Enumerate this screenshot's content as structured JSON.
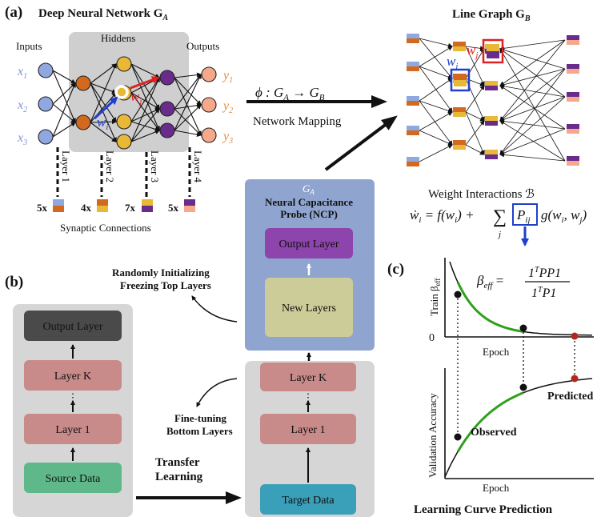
{
  "panel_a": {
    "label": "(a)",
    "title_main": "Deep Neural Network G",
    "title_sub": "A",
    "inputs_title": "Inputs",
    "hiddens_title": "Hiddens",
    "outputs_title": "Outputs",
    "input_labels": [
      "x",
      "x",
      "x"
    ],
    "input_subs": [
      "1",
      "2",
      "3"
    ],
    "output_labels": [
      "y",
      "y",
      "y"
    ],
    "output_subs": [
      "1",
      "2",
      "3"
    ],
    "layer_labels": [
      "Layer 1",
      "Layer 2",
      "Layer 3",
      "Layer 4"
    ],
    "counts": [
      "5x",
      "4x",
      "7x",
      "5x"
    ],
    "synaptic": "Synaptic Connections",
    "wi": "w",
    "wi_sub": "i",
    "wj": "w",
    "wj_sub": "j"
  },
  "mapping": {
    "formula_lead": "ϕ : G",
    "formula_sub1": "A",
    "formula_arrow": " → G",
    "formula_sub2": "B",
    "label": "Network Mapping"
  },
  "line_graph": {
    "title_main": "Line Graph G",
    "title_sub": "B",
    "wi": "w",
    "wi_sub": "i",
    "wj": "w",
    "wj_sub": "j",
    "interactions_title": "Weight Interactions ℬ",
    "eq_lhs": "ẇ",
    "eq_lhs_sub": "i",
    "eq_mid": " = f(w",
    "eq_mid_sub": "i",
    "eq_mid_end": ") + ",
    "eq_sum": "∑",
    "eq_sum_sub": "j",
    "eq_P": "P",
    "eq_P_sub": "ij",
    "eq_g": "g(w",
    "eq_g_sub1": "i",
    "eq_g_mid": ", w",
    "eq_g_sub2": "j",
    "eq_g_end": ")"
  },
  "ncp": {
    "ga": "G",
    "ga_sub": "A",
    "title_line1": "Neural Capacitance",
    "title_line2": "Probe (NCP)",
    "output_layer": "Output Layer",
    "new_layers": "New Layers",
    "random_line1": "Randomly Initializing",
    "random_line2": "Freezing Top Layers"
  },
  "panel_b": {
    "label": "(b)",
    "left_stack": [
      "Output Layer",
      "Layer K",
      "Layer 1",
      "Source Data"
    ],
    "right_stack": [
      "Layer K",
      "Layer 1",
      "Target Data"
    ],
    "transfer_line1": "Transfer",
    "transfer_line2": "Learning",
    "fine_line1": "Fine-tuning",
    "fine_line2": "Bottom Layers"
  },
  "panel_c": {
    "label": "(c)",
    "top_ylabel": "Train β",
    "top_ylabel_sub": "eff",
    "zero": "0",
    "epoch_top": "Epoch",
    "epoch_bottom": "Epoch",
    "bottom_ylabel": "Validation Accuracy",
    "beta_lhs": "β",
    "beta_lhs_sub": "eff",
    "beta_eq": " = ",
    "numerator": "1",
    "numerator_sup": "T",
    "numerator_rest": "PP1",
    "denominator": "1",
    "denominator_sup": "T",
    "denominator_rest": "P1",
    "observed": "Observed",
    "predicted": "Predicted",
    "title": "Learning Curve Prediction"
  },
  "colors": {
    "input_node": "#8fa8e0",
    "hidden_orange": "#d2691e",
    "hidden_yellow": "#e8b836",
    "hidden_purple": "#6a2c8c",
    "output_node": "#f5a98a",
    "gray_panel": "#cfcfcf",
    "ncp_panel": "#8fa4cf",
    "output_layer_box": "#8e44ad",
    "new_layers_box": "#cccc99",
    "layer_box": "#c98a8a",
    "dark_box": "#4a4a4a",
    "source_data": "#5fb88a",
    "target_data": "#3a9fb8",
    "observed_green": "#2ea01c",
    "predicted_red": "#b0291c",
    "wi_blue": "#1f3fcc",
    "wj_red": "#e02020"
  }
}
